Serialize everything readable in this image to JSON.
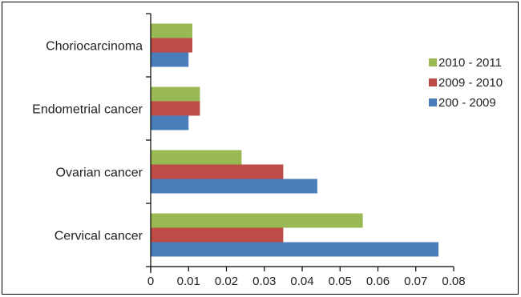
{
  "chart_data": {
    "type": "bar",
    "orientation": "horizontal",
    "categories": [
      "Cervical cancer",
      "Ovarian cancer",
      "Endometrial cancer",
      "Choriocarcinoma"
    ],
    "series": [
      {
        "name": "200 - 2009",
        "color": "#4a7ebb",
        "values": [
          0.076,
          0.044,
          0.01,
          0.01
        ]
      },
      {
        "name": "2009 - 2010",
        "color": "#be4b48",
        "values": [
          0.035,
          0.035,
          0.013,
          0.011
        ]
      },
      {
        "name": "2010 - 2011",
        "color": "#98b954",
        "values": [
          0.056,
          0.024,
          0.013,
          0.011
        ]
      }
    ],
    "xlim": [
      0,
      0.08
    ],
    "xticks": [
      "0",
      "0.01",
      "0.02",
      "0.03",
      "0.04",
      "0.05",
      "0.06",
      "0.07",
      "0.08"
    ],
    "legend_position": "right"
  }
}
